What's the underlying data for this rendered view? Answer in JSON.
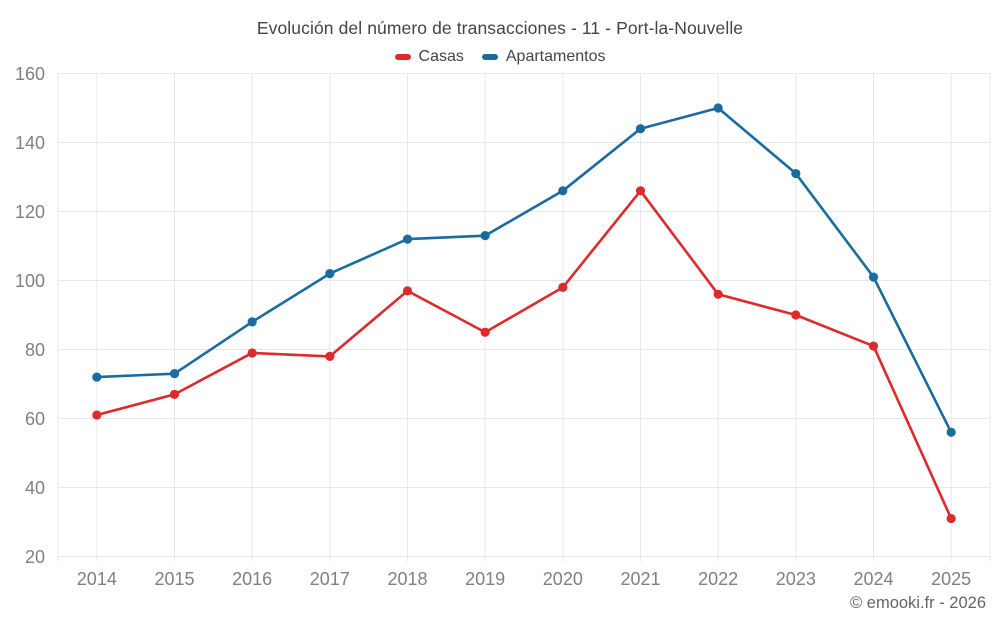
{
  "header": {
    "title": "Evolución del número de transacciones - 11 - Port-la-Nouvelle"
  },
  "legend": {
    "position": "top",
    "items": [
      {
        "label": "Casas",
        "color": "#dc2a2e"
      },
      {
        "label": "Apartamentos",
        "color": "#1a6b9e"
      }
    ]
  },
  "footer": {
    "credit": "© emooki.fr - 2026"
  },
  "colors": {
    "background": "#ffffff",
    "grid": "#e8e8e8",
    "axis_label": "#808080",
    "title": "#444444",
    "footer": "#646464",
    "casas": "#dc2a2e",
    "apartamentos": "#1a6b9e"
  },
  "chart_data": {
    "type": "line",
    "title": "Evolución del número de transacciones - 11 - Port-la-Nouvelle",
    "xlabel": "",
    "ylabel": "",
    "x": [
      2014,
      2015,
      2016,
      2017,
      2018,
      2019,
      2020,
      2021,
      2022,
      2023,
      2024,
      2025
    ],
    "series": [
      {
        "name": "Casas",
        "color": "#dc2a2e",
        "values": [
          61,
          67,
          79,
          78,
          97,
          85,
          98,
          126,
          96,
          90,
          81,
          31
        ]
      },
      {
        "name": "Apartamentos",
        "color": "#1a6b9e",
        "values": [
          72,
          73,
          88,
          102,
          112,
          113,
          126,
          144,
          150,
          131,
          101,
          56
        ]
      }
    ],
    "ylim": [
      20,
      160
    ],
    "ytick_step": 20,
    "grid": true,
    "markers": true,
    "legend_position": "top"
  }
}
